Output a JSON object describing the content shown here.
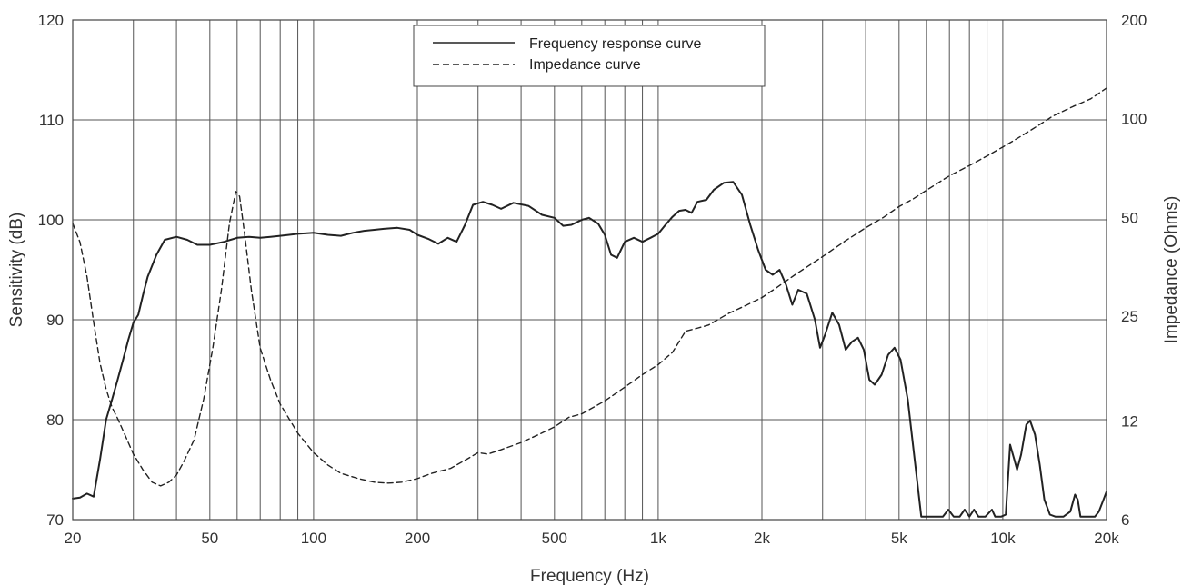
{
  "chart_data": {
    "type": "line",
    "title": "",
    "xlabel": "Frequency (Hz)",
    "ylabel_left": "Sensitivity (dB)",
    "ylabel_right": "Impedance (Ohms)",
    "x_scale": "log",
    "xlim": [
      20,
      20000
    ],
    "ylim_left": [
      70,
      120
    ],
    "ylim_right": [
      6,
      200
    ],
    "y_right_scale": "log",
    "grid": true,
    "legend_position": "top-center",
    "x_ticks": [
      {
        "value": 20,
        "label": "20"
      },
      {
        "value": 50,
        "label": "50"
      },
      {
        "value": 100,
        "label": "100"
      },
      {
        "value": 200,
        "label": "200"
      },
      {
        "value": 500,
        "label": "500"
      },
      {
        "value": 1000,
        "label": "1k"
      },
      {
        "value": 2000,
        "label": "2k"
      },
      {
        "value": 5000,
        "label": "5k"
      },
      {
        "value": 10000,
        "label": "10k"
      },
      {
        "value": 20000,
        "label": "20k"
      }
    ],
    "y_left_ticks": [
      70,
      80,
      90,
      100,
      110,
      120
    ],
    "y_right_ticks": [
      {
        "value": 6,
        "label": "6"
      },
      {
        "value": 12,
        "label": "12"
      },
      {
        "value": 25,
        "label": "25"
      },
      {
        "value": 50,
        "label": "50"
      },
      {
        "value": 100,
        "label": "100"
      },
      {
        "value": 200,
        "label": "200"
      }
    ],
    "series": [
      {
        "name": "Frequency response curve",
        "axis": "left",
        "style": "solid",
        "color": "#222222",
        "points": [
          [
            20,
            72.1
          ],
          [
            21,
            72.2
          ],
          [
            22,
            72.6
          ],
          [
            23,
            72.3
          ],
          [
            24,
            76
          ],
          [
            25,
            80
          ],
          [
            26,
            82
          ],
          [
            27,
            84
          ],
          [
            28,
            86
          ],
          [
            29,
            88
          ],
          [
            30,
            89.7
          ],
          [
            31,
            90.5
          ],
          [
            32,
            92.5
          ],
          [
            33,
            94.3
          ],
          [
            35,
            96.5
          ],
          [
            37,
            98
          ],
          [
            40,
            98.3
          ],
          [
            43,
            98
          ],
          [
            46,
            97.5
          ],
          [
            50,
            97.5
          ],
          [
            55,
            97.8
          ],
          [
            60,
            98.2
          ],
          [
            65,
            98.3
          ],
          [
            70,
            98.2
          ],
          [
            75,
            98.3
          ],
          [
            80,
            98.4
          ],
          [
            85,
            98.5
          ],
          [
            90,
            98.6
          ],
          [
            100,
            98.7
          ],
          [
            110,
            98.5
          ],
          [
            120,
            98.4
          ],
          [
            130,
            98.7
          ],
          [
            140,
            98.9
          ],
          [
            150,
            99
          ],
          [
            160,
            99.1
          ],
          [
            175,
            99.2
          ],
          [
            190,
            99
          ],
          [
            200,
            98.5
          ],
          [
            215,
            98.1
          ],
          [
            230,
            97.6
          ],
          [
            245,
            98.2
          ],
          [
            260,
            97.8
          ],
          [
            275,
            99.5
          ],
          [
            290,
            101.5
          ],
          [
            310,
            101.8
          ],
          [
            330,
            101.5
          ],
          [
            350,
            101.1
          ],
          [
            380,
            101.7
          ],
          [
            420,
            101.4
          ],
          [
            460,
            100.5
          ],
          [
            500,
            100.2
          ],
          [
            530,
            99.4
          ],
          [
            560,
            99.5
          ],
          [
            600,
            100
          ],
          [
            630,
            100.2
          ],
          [
            670,
            99.6
          ],
          [
            700,
            98.5
          ],
          [
            730,
            96.5
          ],
          [
            760,
            96.2
          ],
          [
            800,
            97.8
          ],
          [
            850,
            98.2
          ],
          [
            900,
            97.8
          ],
          [
            950,
            98.2
          ],
          [
            1000,
            98.6
          ],
          [
            1050,
            99.5
          ],
          [
            1100,
            100.3
          ],
          [
            1150,
            100.9
          ],
          [
            1200,
            101
          ],
          [
            1250,
            100.7
          ],
          [
            1300,
            101.8
          ],
          [
            1380,
            102
          ],
          [
            1450,
            103
          ],
          [
            1550,
            103.7
          ],
          [
            1650,
            103.8
          ],
          [
            1750,
            102.5
          ],
          [
            1850,
            99.5
          ],
          [
            1950,
            97
          ],
          [
            2050,
            95
          ],
          [
            2150,
            94.5
          ],
          [
            2250,
            95
          ],
          [
            2350,
            93.5
          ],
          [
            2450,
            91.5
          ],
          [
            2550,
            93
          ],
          [
            2700,
            92.6
          ],
          [
            2850,
            90
          ],
          [
            2950,
            87.2
          ],
          [
            3050,
            88.5
          ],
          [
            3200,
            90.7
          ],
          [
            3350,
            89.5
          ],
          [
            3500,
            87
          ],
          [
            3650,
            87.8
          ],
          [
            3800,
            88.2
          ],
          [
            3950,
            87
          ],
          [
            4100,
            84
          ],
          [
            4250,
            83.5
          ],
          [
            4450,
            84.5
          ],
          [
            4650,
            86.5
          ],
          [
            4850,
            87.2
          ],
          [
            5050,
            86
          ],
          [
            5300,
            82
          ],
          [
            5550,
            76
          ],
          [
            5800,
            70.3
          ],
          [
            6200,
            70.3
          ],
          [
            6700,
            70.3
          ],
          [
            6950,
            71
          ],
          [
            7200,
            70.3
          ],
          [
            7500,
            70.3
          ],
          [
            7750,
            71
          ],
          [
            8000,
            70.3
          ],
          [
            8250,
            71
          ],
          [
            8500,
            70.3
          ],
          [
            8900,
            70.3
          ],
          [
            9300,
            71
          ],
          [
            9500,
            70.3
          ],
          [
            9900,
            70.3
          ],
          [
            10200,
            70.5
          ],
          [
            10500,
            77.5
          ],
          [
            10800,
            76
          ],
          [
            11000,
            75
          ],
          [
            11300,
            76.5
          ],
          [
            11700,
            79.5
          ],
          [
            12000,
            79.9
          ],
          [
            12400,
            78.5
          ],
          [
            12800,
            75.5
          ],
          [
            13200,
            72
          ],
          [
            13700,
            70.5
          ],
          [
            14200,
            70.3
          ],
          [
            15000,
            70.3
          ],
          [
            15700,
            70.8
          ],
          [
            16200,
            72.5
          ],
          [
            16500,
            72
          ],
          [
            16800,
            70.3
          ],
          [
            17500,
            70.3
          ],
          [
            18500,
            70.3
          ],
          [
            19000,
            70.8
          ],
          [
            19500,
            71.8
          ],
          [
            20000,
            72.8
          ]
        ]
      },
      {
        "name": "Impedance curve",
        "axis": "right",
        "style": "dashed",
        "color": "#222222",
        "points": [
          [
            20,
            48
          ],
          [
            21,
            42
          ],
          [
            22,
            33
          ],
          [
            23,
            24
          ],
          [
            24,
            18
          ],
          [
            25,
            15
          ],
          [
            26,
            13.2
          ],
          [
            27,
            12.2
          ],
          [
            28,
            11.2
          ],
          [
            29,
            10.3
          ],
          [
            30,
            9.5
          ],
          [
            32,
            8.5
          ],
          [
            34,
            7.8
          ],
          [
            36,
            7.6
          ],
          [
            38,
            7.8
          ],
          [
            40,
            8.2
          ],
          [
            42,
            9
          ],
          [
            45,
            10.5
          ],
          [
            48,
            14
          ],
          [
            51,
            20
          ],
          [
            54,
            30
          ],
          [
            57,
            48
          ],
          [
            59.5,
            60
          ],
          [
            61,
            58
          ],
          [
            63,
            45
          ],
          [
            66,
            30
          ],
          [
            70,
            20
          ],
          [
            75,
            16
          ],
          [
            80,
            13.5
          ],
          [
            90,
            11
          ],
          [
            100,
            9.6
          ],
          [
            110,
            8.8
          ],
          [
            120,
            8.3
          ],
          [
            135,
            8
          ],
          [
            150,
            7.8
          ],
          [
            165,
            7.75
          ],
          [
            180,
            7.8
          ],
          [
            200,
            8
          ],
          [
            220,
            8.3
          ],
          [
            250,
            8.6
          ],
          [
            280,
            9.2
          ],
          [
            300,
            9.6
          ],
          [
            320,
            9.5
          ],
          [
            350,
            9.8
          ],
          [
            400,
            10.3
          ],
          [
            450,
            10.9
          ],
          [
            500,
            11.5
          ],
          [
            550,
            12.3
          ],
          [
            600,
            12.6
          ],
          [
            700,
            13.8
          ],
          [
            800,
            15.2
          ],
          [
            900,
            16.6
          ],
          [
            1000,
            17.8
          ],
          [
            1100,
            19.4
          ],
          [
            1200,
            22.5
          ],
          [
            1300,
            23
          ],
          [
            1400,
            23.5
          ],
          [
            1600,
            25.5
          ],
          [
            1800,
            27
          ],
          [
            2000,
            28.5
          ],
          [
            2200,
            30.5
          ],
          [
            2500,
            33.5
          ],
          [
            3000,
            38
          ],
          [
            3500,
            42.5
          ],
          [
            4000,
            46.5
          ],
          [
            4500,
            50
          ],
          [
            5000,
            54
          ],
          [
            5500,
            57
          ],
          [
            6000,
            60.5
          ],
          [
            7000,
            67
          ],
          [
            8000,
            72
          ],
          [
            9000,
            77
          ],
          [
            10000,
            82
          ],
          [
            11000,
            87
          ],
          [
            12000,
            92
          ],
          [
            13000,
            97
          ],
          [
            14000,
            102
          ],
          [
            16000,
            109
          ],
          [
            18000,
            115
          ],
          [
            20000,
            124
          ]
        ]
      }
    ]
  },
  "legend": {
    "items": [
      {
        "label": "Frequency response curve",
        "style": "solid"
      },
      {
        "label": "Impedance curve",
        "style": "dashed"
      }
    ]
  },
  "colors": {
    "grid": "#555555",
    "curve": "#222222",
    "text": "#333333",
    "background": "#ffffff"
  }
}
